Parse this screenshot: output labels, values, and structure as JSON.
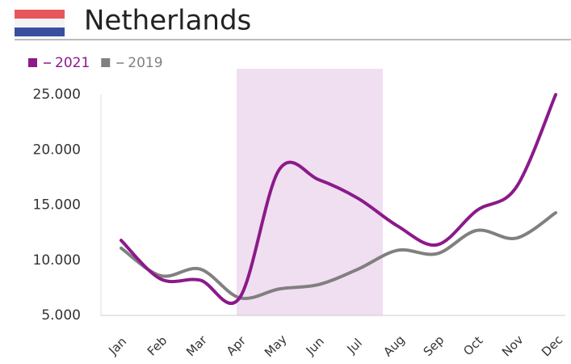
{
  "chart_data": {
    "type": "line",
    "title": "Netherlands",
    "categories": [
      "Jan",
      "Feb",
      "Mar",
      "Apr",
      "May",
      "Jun",
      "Jul",
      "Aug",
      "Sep",
      "Oct",
      "Nov",
      "Dec"
    ],
    "series": [
      {
        "name": "2021",
        "color": "#8b1a8b",
        "values": [
          11800,
          8300,
          8200,
          6600,
          18200,
          17300,
          15600,
          13100,
          11400,
          14500,
          16600,
          25000
        ]
      },
      {
        "name": "2019",
        "color": "#808080",
        "values": [
          11100,
          8600,
          9200,
          6600,
          7400,
          7800,
          9200,
          10900,
          10600,
          12700,
          12000,
          14300
        ]
      }
    ],
    "ylim": [
      5000,
      25000
    ],
    "yticks": [
      {
        "value": 5000,
        "label": "5.000"
      },
      {
        "value": 10000,
        "label": "10.000"
      },
      {
        "value": 15000,
        "label": "15.000"
      },
      {
        "value": 20000,
        "label": "20.000"
      },
      {
        "value": 25000,
        "label": "25.000"
      }
    ],
    "grid": false,
    "legend": "top-left"
  }
}
